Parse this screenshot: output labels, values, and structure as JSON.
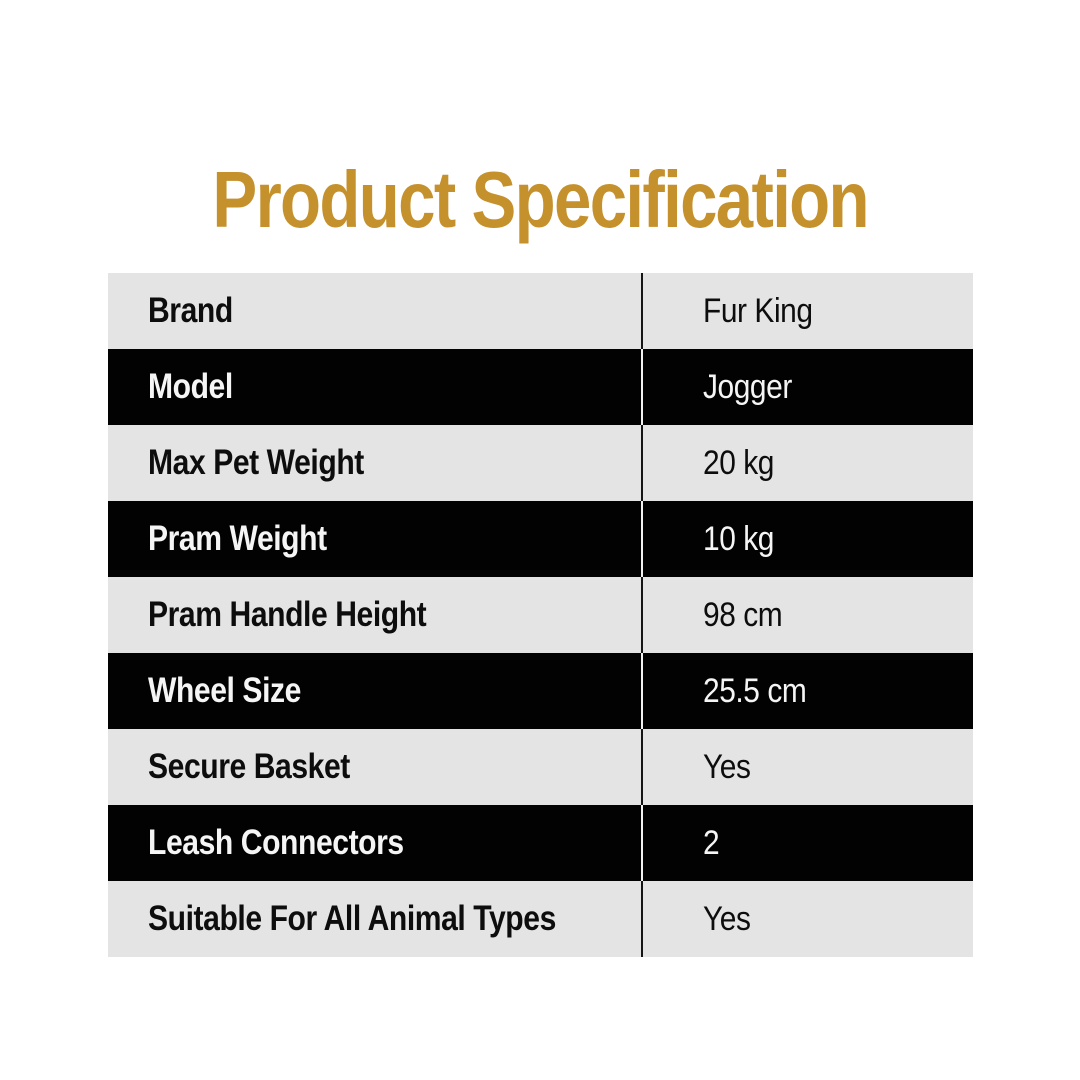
{
  "title": "Product Specification",
  "colors": {
    "title_gold": "#c5912c",
    "row_light_bg": "#e4e4e4",
    "row_dark_bg": "#020202",
    "row_light_text": "#0d0d0d",
    "row_dark_text": "#f5f5f5",
    "page_bg": "#ffffff"
  },
  "spec_table": {
    "rows": [
      {
        "label": "Brand",
        "value": "Fur King"
      },
      {
        "label": "Model",
        "value": "Jogger"
      },
      {
        "label": "Max Pet Weight",
        "value": "20 kg"
      },
      {
        "label": "Pram Weight",
        "value": "10 kg"
      },
      {
        "label": "Pram Handle Height",
        "value": "98 cm"
      },
      {
        "label": "Wheel Size",
        "value": "25.5 cm"
      },
      {
        "label": "Secure Basket",
        "value": "Yes"
      },
      {
        "label": "Leash Connectors",
        "value": "2"
      },
      {
        "label": "Suitable For All Animal Types",
        "value": "Yes"
      }
    ]
  }
}
